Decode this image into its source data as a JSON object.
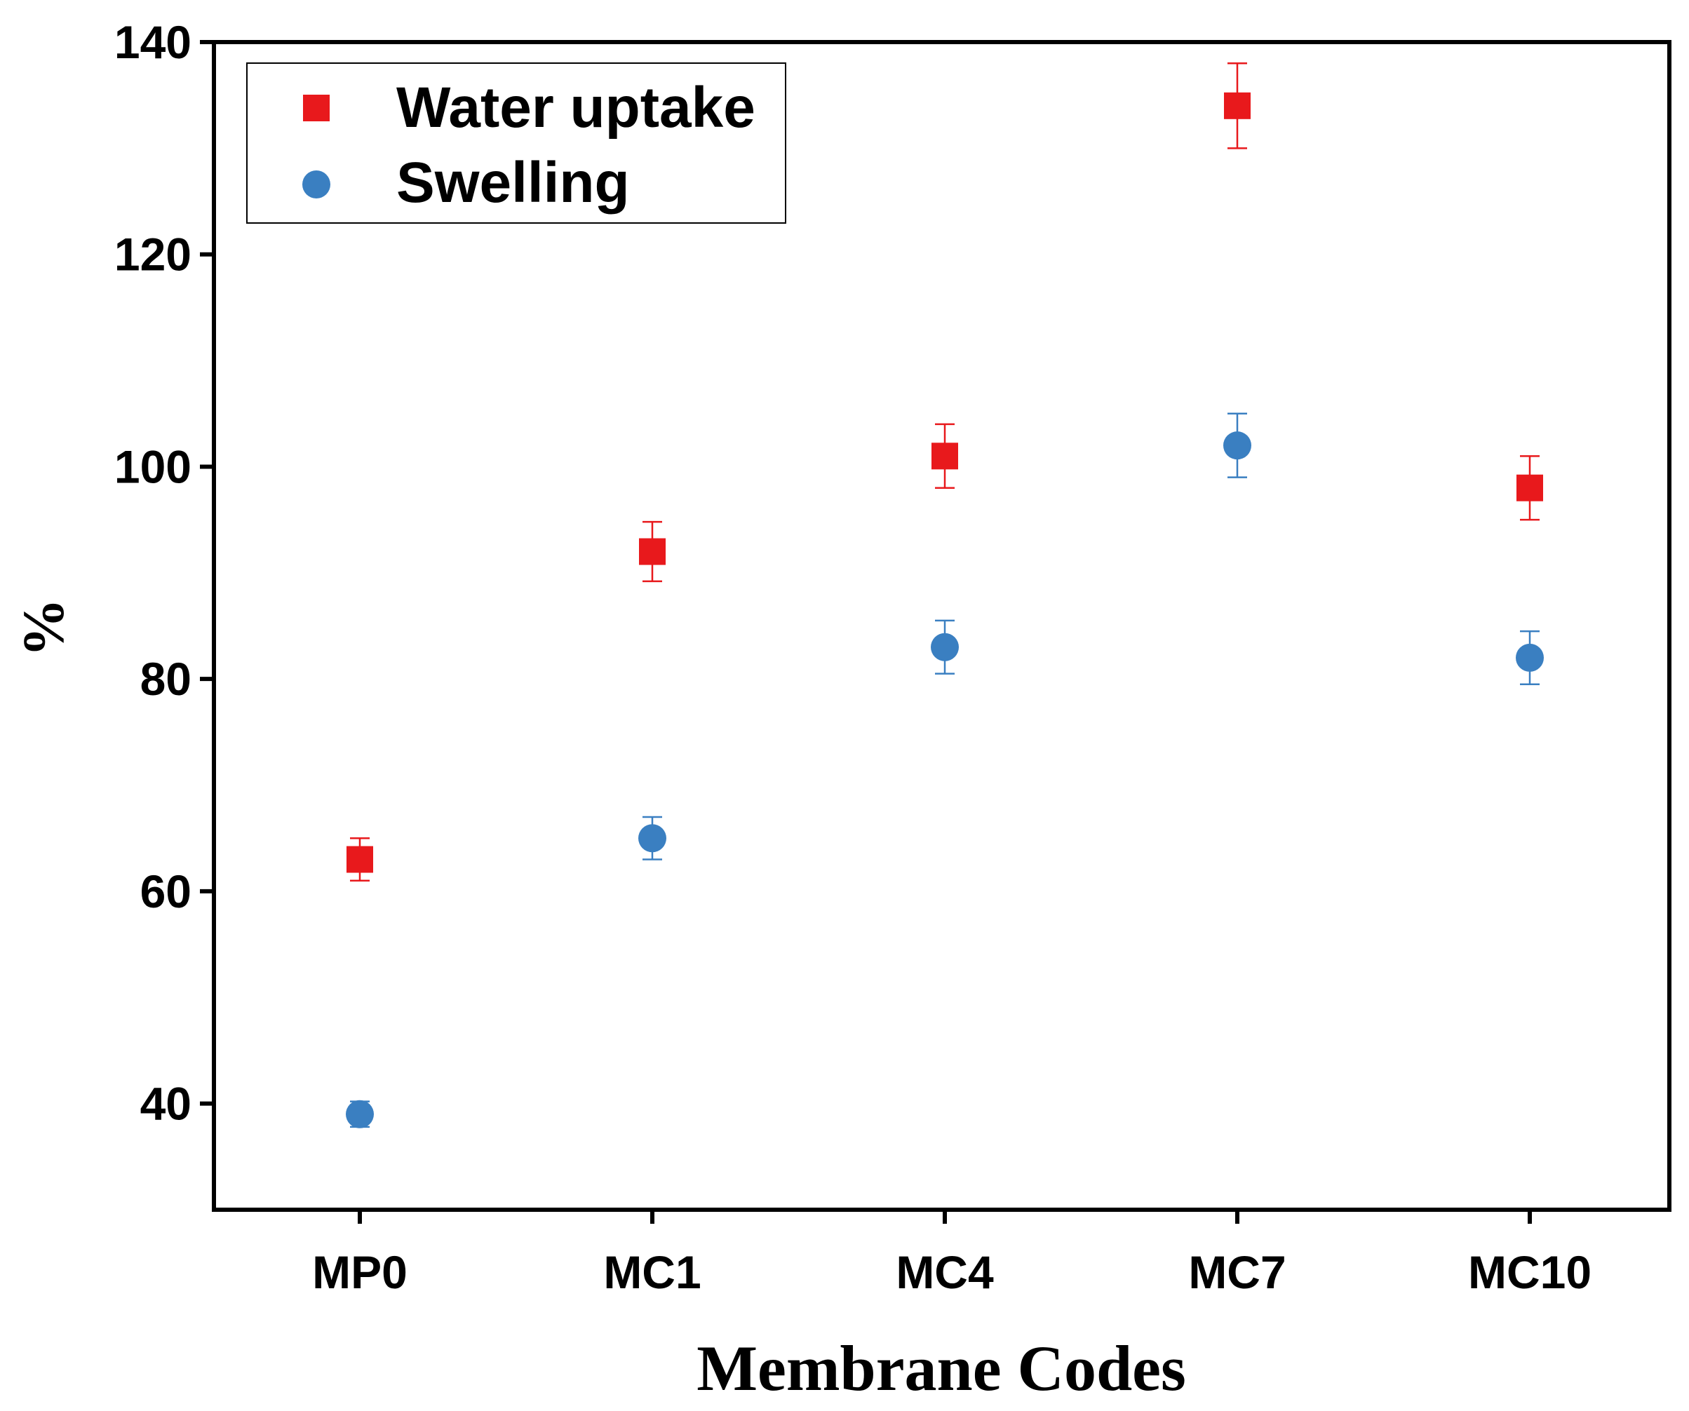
{
  "chart_data": {
    "type": "scatter",
    "title": "",
    "xlabel": "Membrane Codes",
    "ylabel": "%",
    "categories": [
      "MP0",
      "MC1",
      "MC4",
      "MC7",
      "MC10"
    ],
    "ylim": [
      30,
      140
    ],
    "yticks": [
      40,
      60,
      80,
      100,
      120,
      140
    ],
    "ytick_labels": [
      "40",
      "60",
      "80",
      "100",
      "120",
      "140"
    ],
    "grid": false,
    "legend_position": "top-left",
    "series": [
      {
        "name": "Water uptake",
        "marker": "square",
        "color": "#e8191c",
        "values": [
          63,
          92,
          101,
          134,
          98
        ],
        "errors": [
          2,
          2.8,
          3,
          4,
          3
        ]
      },
      {
        "name": "Swelling",
        "marker": "circle",
        "color": "#3a7fc1",
        "values": [
          39,
          65,
          83,
          102,
          82
        ],
        "errors": [
          1.2,
          2,
          2.5,
          3,
          2.5
        ]
      }
    ]
  }
}
